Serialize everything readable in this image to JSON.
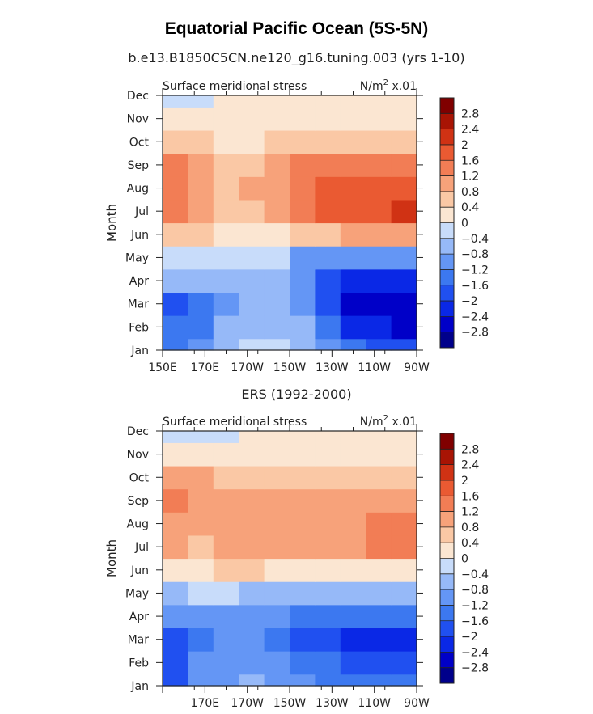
{
  "figure": {
    "title": "Equatorial Pacific Ocean (5S-5N)"
  },
  "chart_data": [
    {
      "type": "heatmap",
      "subtitle": "b.e13.B1850C5CN.ne120_g16.tuning.003 (yrs 1-10)",
      "left_label": "Surface meridional stress",
      "right_label": "N/m",
      "right_label_sup": "2",
      "right_label_suffix": "x.01",
      "ylabel": "Month",
      "y_categories": [
        "Jan",
        "Feb",
        "Mar",
        "Apr",
        "May",
        "Jun",
        "Jul",
        "Aug",
        "Sep",
        "Oct",
        "Nov",
        "Dec"
      ],
      "x_ticks": [
        "150E",
        "170E",
        "170W",
        "150W",
        "130W",
        "110W",
        "90W"
      ],
      "x_range_deg_east": [
        150,
        270
      ],
      "x_grid_deg_east": [
        150,
        165,
        180,
        195,
        210,
        225,
        240,
        255,
        270
      ],
      "color_levels": [
        -2.8,
        -2.4,
        -2,
        -1.6,
        -1.2,
        -0.8,
        -0.4,
        0,
        0.4,
        0.8,
        1.2,
        1.6,
        2,
        2.4,
        2.8
      ],
      "values": [
        [
          -1.5,
          -1.2,
          -0.7,
          -0.4,
          -0.4,
          -0.6,
          -1.2,
          -1.6,
          -1.9,
          -2.0
        ],
        [
          -1.6,
          -1.3,
          -0.8,
          -0.5,
          -0.5,
          -0.8,
          -1.6,
          -2.1,
          -2.4,
          -2.5
        ],
        [
          -1.7,
          -1.3,
          -1.0,
          -0.5,
          -0.6,
          -1.1,
          -2.0,
          -2.5,
          -2.8,
          -2.8
        ],
        [
          -0.6,
          -0.6,
          -0.5,
          -0.5,
          -0.6,
          -1.2,
          -1.7,
          -2.1,
          -2.3,
          -2.3
        ],
        [
          -0.3,
          -0.2,
          -0.2,
          -0.2,
          -0.3,
          -0.9,
          -1.0,
          -1.1,
          -1.1,
          -1.1
        ],
        [
          0.6,
          0.4,
          0.3,
          0.2,
          0.3,
          0.5,
          0.7,
          0.9,
          1.0,
          1.1
        ],
        [
          1.2,
          0.9,
          0.6,
          0.6,
          0.9,
          1.3,
          1.6,
          1.7,
          1.9,
          2.0
        ],
        [
          1.5,
          1.0,
          0.7,
          0.8,
          1.1,
          1.5,
          1.8,
          1.8,
          1.8,
          1.8
        ],
        [
          1.3,
          0.9,
          0.7,
          0.7,
          0.9,
          1.2,
          1.3,
          1.2,
          1.2,
          1.2
        ],
        [
          0.7,
          0.5,
          0.3,
          0.3,
          0.5,
          0.7,
          0.7,
          0.7,
          0.7,
          0.7
        ],
        [
          0.3,
          0.2,
          0.1,
          0.1,
          0.1,
          0.2,
          0.2,
          0.2,
          0.2,
          0.2
        ],
        [
          -0.1,
          -0.1,
          0.1,
          0.2,
          0.2,
          0.1,
          0.1,
          0.1,
          0.1,
          0.1
        ]
      ]
    },
    {
      "type": "heatmap",
      "subtitle": "ERS (1992-2000)",
      "left_label": "Surface meridional stress",
      "right_label": "N/m",
      "right_label_sup": "2",
      "right_label_suffix": "x.01",
      "ylabel": "Month",
      "y_categories": [
        "Jan",
        "Feb",
        "Mar",
        "Apr",
        "May",
        "Jun",
        "Jul",
        "Aug",
        "Sep",
        "Oct",
        "Nov",
        "Dec"
      ],
      "x_ticks": [
        "170E",
        "170W",
        "150W",
        "130W",
        "110W",
        "90W"
      ],
      "x_range_deg_east": [
        150,
        270
      ],
      "x_grid_deg_east": [
        150,
        165,
        180,
        195,
        210,
        225,
        240,
        255,
        270
      ],
      "color_levels": [
        -2.8,
        -2.4,
        -2,
        -1.6,
        -1.2,
        -0.8,
        -0.4,
        0,
        0.4,
        0.8,
        1.2,
        1.6,
        2,
        2.4,
        2.8
      ],
      "values": [
        [
          -1.7,
          -1.1,
          -0.9,
          -0.8,
          -1.1,
          -1.2,
          -1.3,
          -1.4,
          -1.5,
          -1.6
        ],
        [
          -1.8,
          -1.2,
          -1.0,
          -0.9,
          -1.2,
          -1.5,
          -1.6,
          -1.9,
          -2.0,
          -2.0
        ],
        [
          -1.9,
          -1.4,
          -1.2,
          -1.1,
          -1.3,
          -1.7,
          -1.9,
          -2.1,
          -2.2,
          -2.1
        ],
        [
          -1.1,
          -0.9,
          -0.9,
          -1.0,
          -1.1,
          -1.3,
          -1.4,
          -1.5,
          -1.5,
          -1.4
        ],
        [
          -0.5,
          -0.4,
          -0.4,
          -0.5,
          -0.6,
          -0.6,
          -0.6,
          -0.6,
          -0.6,
          -0.6
        ],
        [
          0.3,
          0.3,
          0.4,
          0.4,
          0.3,
          0.3,
          0.3,
          0.2,
          0.2,
          0.3
        ],
        [
          0.9,
          0.7,
          0.8,
          0.8,
          0.8,
          0.9,
          0.9,
          1.0,
          1.3,
          1.4
        ],
        [
          1.0,
          0.9,
          1.0,
          1.0,
          1.1,
          1.1,
          1.0,
          1.0,
          1.2,
          1.3
        ],
        [
          1.3,
          1.0,
          1.0,
          0.9,
          1.0,
          1.0,
          0.9,
          0.8,
          0.8,
          0.9
        ],
        [
          0.9,
          0.8,
          0.7,
          0.6,
          0.7,
          0.7,
          0.6,
          0.6,
          0.6,
          0.7
        ],
        [
          0.3,
          0.3,
          0.2,
          0.2,
          0.2,
          0.2,
          0.2,
          0.2,
          0.2,
          0.3
        ],
        [
          -0.3,
          -0.2,
          -0.1,
          0.1,
          0.1,
          0.1,
          0.1,
          0.0,
          0.0,
          0.0
        ]
      ]
    }
  ],
  "colors": {
    "levels": [
      "#00008b",
      "#0000c8",
      "#0a28e6",
      "#2050f0",
      "#3c78f0",
      "#6496f5",
      "#96b9f8",
      "#c8dcfa",
      "#fbe6d2",
      "#fac8a5",
      "#f7a27a",
      "#f27d55",
      "#ea5a32",
      "#d03214",
      "#a81404",
      "#800000"
    ],
    "axis": "#222222"
  }
}
